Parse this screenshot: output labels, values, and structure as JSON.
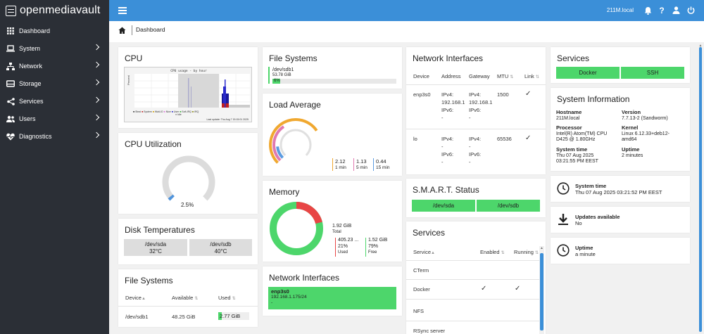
{
  "app": {
    "logo_text": "openmediavault",
    "hostname": "211M.local"
  },
  "sidebar": {
    "items": [
      {
        "label": "Dashboard",
        "icon": "grid-icon"
      },
      {
        "label": "System",
        "icon": "laptop-icon"
      },
      {
        "label": "Network",
        "icon": "network-icon"
      },
      {
        "label": "Storage",
        "icon": "storage-icon"
      },
      {
        "label": "Services",
        "icon": "share-icon"
      },
      {
        "label": "Users",
        "icon": "users-icon"
      },
      {
        "label": "Diagnostics",
        "icon": "heart-pulse-icon"
      }
    ]
  },
  "breadcrumb": {
    "label": "Dashboard"
  },
  "cpu": {
    "title": "CPU",
    "chart_title": "CPU usage - by hour",
    "legend": [
      "Steal",
      "System",
      "Wait-IO",
      "Nice",
      "User",
      "Soft-IRQ",
      "IRQ",
      "Idle"
    ],
    "last_update": "Last update: Thu Aug  7 15:15:01 2025"
  },
  "cpu_util": {
    "title": "CPU Utilization",
    "value": "2.5%",
    "fraction": 0.025
  },
  "disk_temp": {
    "title": "Disk Temperatures",
    "disks": [
      {
        "name": "/dev/sda",
        "temp": "32°C"
      },
      {
        "name": "/dev/sdb",
        "temp": "40°C"
      }
    ]
  },
  "fs_table": {
    "title": "File Systems",
    "headers": {
      "device": "Device",
      "available": "Available",
      "used": "Used"
    },
    "rows": [
      {
        "device": "/dev/sdb1",
        "available": "48.25 GiB",
        "used": "2.77 GiB",
        "used_fraction": 0.06
      }
    ]
  },
  "fs_bar": {
    "title": "File Systems",
    "device": "/dev/sdb1",
    "size": "53.78 GiB",
    "percent": "6%",
    "fraction": 0.06
  },
  "load": {
    "title": "Load Average",
    "values": [
      {
        "v": "2.12",
        "l": "1 min",
        "color": "#f0a830"
      },
      {
        "v": "1.13",
        "l": "5 min",
        "color": "#e07ab0"
      },
      {
        "v": "0.44",
        "l": "15 min",
        "color": "#5b9be0"
      }
    ]
  },
  "memory": {
    "title": "Memory",
    "total_value": "1.92 GiB",
    "total_label": "Total",
    "used_value": "405.23 ...",
    "used_pct": "21%",
    "used_label": "Used",
    "free_value": "1.52 GiB",
    "free_pct": "79%",
    "free_label": "Free",
    "used_fraction": 0.21
  },
  "net_small": {
    "title": "Network Interfaces",
    "name": "enp3s0",
    "address": "192.168.1.175/24",
    "extra": "-"
  },
  "net_table": {
    "title": "Network Interfaces",
    "headers": {
      "device": "Device",
      "address": "Address",
      "gateway": "Gateway",
      "mtu": "MTU",
      "link": "Link"
    },
    "rows": [
      {
        "device": "enp3s0",
        "addr": [
          "IPv4:",
          "192.168.1",
          "IPv6:",
          "-"
        ],
        "gw": [
          "IPv4:",
          "192.168.1",
          "IPv6:",
          "-"
        ],
        "mtu": "1500",
        "link": "✓"
      },
      {
        "device": "lo",
        "addr": [
          "IPv4:",
          "-",
          "IPv6:",
          "-"
        ],
        "gw": [
          "IPv4:",
          "-",
          "IPv6:",
          "-"
        ],
        "mtu": "65536",
        "link": "✓"
      }
    ]
  },
  "smart": {
    "title": "S.M.A.R.T. Status",
    "disks": [
      "/dev/sda",
      "/dev/sdb"
    ]
  },
  "services_table": {
    "title": "Services",
    "headers": {
      "service": "Service",
      "enabled": "Enabled",
      "running": "Running"
    },
    "rows": [
      {
        "name": "CTerm",
        "enabled": "",
        "running": ""
      },
      {
        "name": "Docker",
        "enabled": "✓",
        "running": "✓"
      },
      {
        "name": "NFS",
        "enabled": "",
        "running": ""
      },
      {
        "name": "RSync server",
        "enabled": "",
        "running": ""
      }
    ]
  },
  "services_btns": {
    "title": "Services",
    "buttons": [
      "Docker",
      "SSH"
    ]
  },
  "sysinfo": {
    "title": "System Information",
    "fields": [
      {
        "label": "Hostname",
        "value": "211M.local"
      },
      {
        "label": "Version",
        "value": "7.7.13-2 (Sandworm)"
      },
      {
        "label": "Processor",
        "value": "Intel(R) Atom(TM) CPU D425 @ 1.80GHz"
      },
      {
        "label": "Kernel",
        "value": "Linux 6.12.33+deb12-amd64"
      },
      {
        "label": "System time",
        "value": "Thu 07 Aug 2025 03:21:55 PM EEST"
      },
      {
        "label": "Uptime",
        "value": "2 minutes"
      }
    ]
  },
  "systime": {
    "label": "System time",
    "value": "Thu 07 Aug 2025 03:21:52 PM EEST"
  },
  "updates": {
    "label": "Updates available",
    "value": "No"
  },
  "uptime": {
    "label": "Uptime",
    "value": "a minute"
  },
  "colors": {
    "topbar": "#3b8fd8",
    "sidebar": "#2b2f36",
    "green": "#4dd66b",
    "red": "#e84545"
  }
}
